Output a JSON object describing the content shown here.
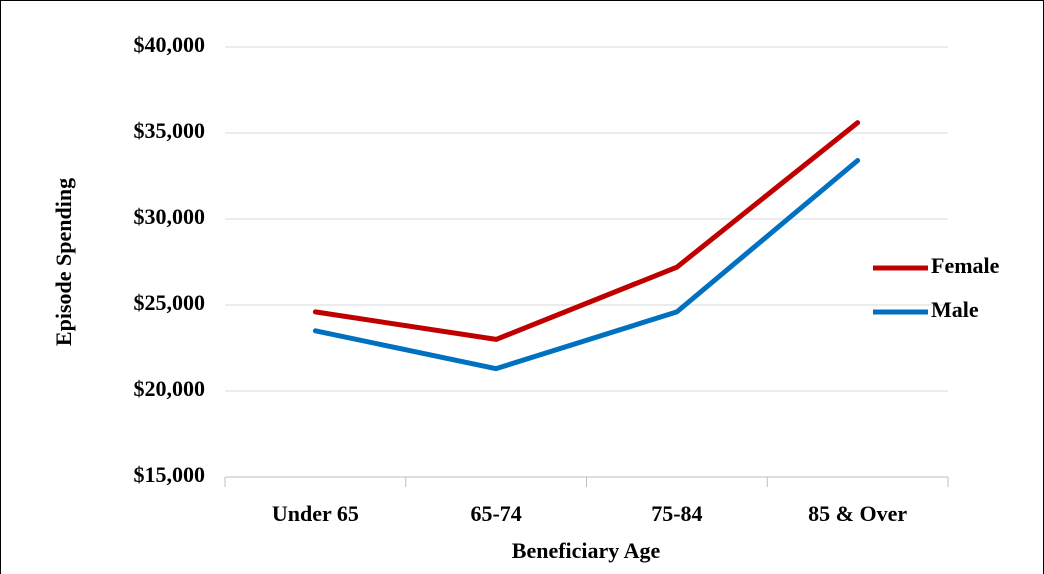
{
  "chart_data": {
    "type": "line",
    "x_label": "Beneficiary Age",
    "y_label": "Episode Spending",
    "categories": [
      "Under 65",
      "65-74",
      "75-84",
      "85 & Over"
    ],
    "series": [
      {
        "name": "Female",
        "color": "#c00000",
        "values": [
          24600,
          23000,
          27200,
          35600
        ]
      },
      {
        "name": "Male",
        "color": "#0070c0",
        "values": [
          23500,
          21300,
          24600,
          33400
        ]
      }
    ],
    "ylim": [
      15000,
      40000
    ],
    "yticks": [
      {
        "value": 15000,
        "label": "$15,000"
      },
      {
        "value": 20000,
        "label": "$20,000"
      },
      {
        "value": 25000,
        "label": "$25,000"
      },
      {
        "value": 30000,
        "label": "$30,000"
      },
      {
        "value": 35000,
        "label": "$35,000"
      },
      {
        "value": 40000,
        "label": "$40,000"
      }
    ],
    "grid": true,
    "legend": "right"
  }
}
